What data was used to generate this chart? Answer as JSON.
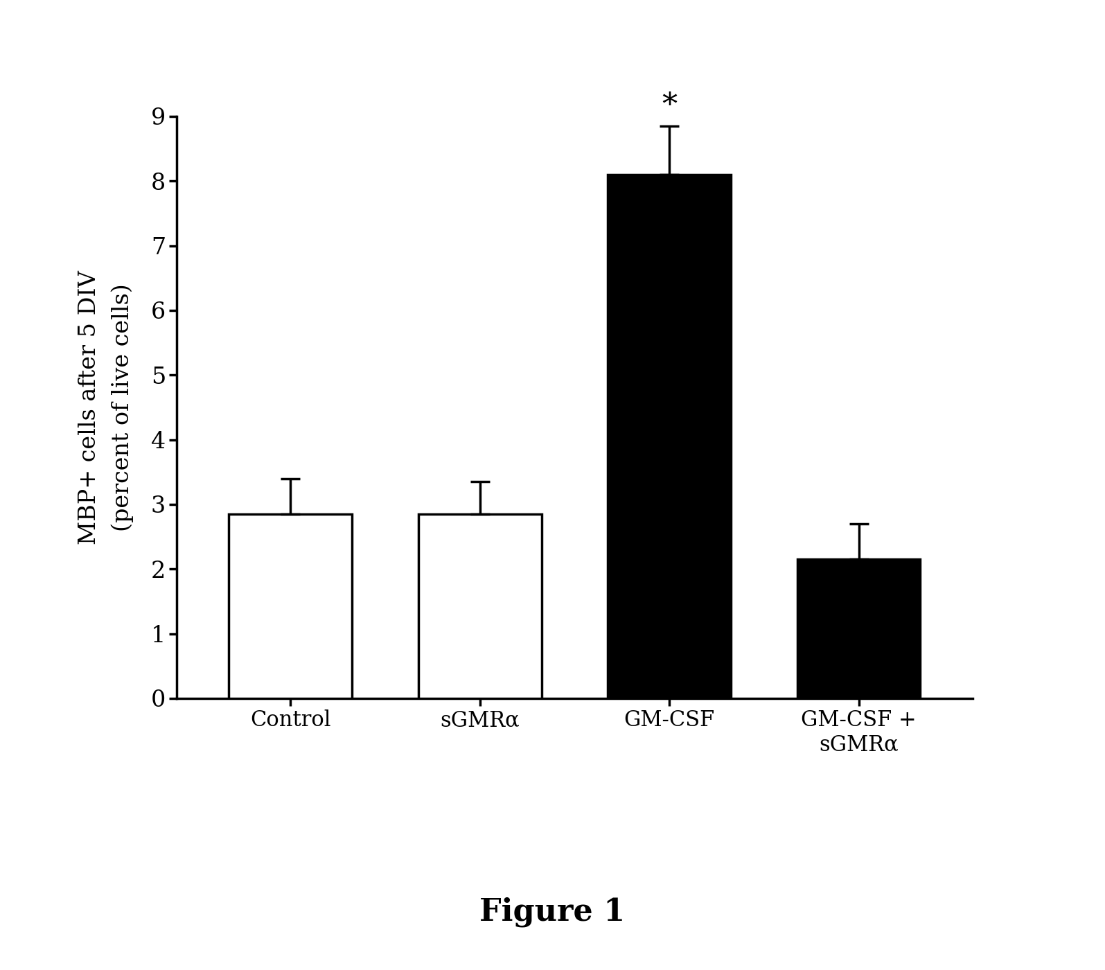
{
  "categories": [
    "Control",
    "sGMRα",
    "GM-CSF",
    "GM-CSF +\nsGMRα"
  ],
  "values": [
    2.85,
    2.85,
    8.1,
    2.15
  ],
  "errors": [
    0.55,
    0.5,
    0.75,
    0.55
  ],
  "bar_colors": [
    "#ffffff",
    "#ffffff",
    "#000000",
    "#000000"
  ],
  "bar_edgecolors": [
    "#000000",
    "#000000",
    "#000000",
    "#000000"
  ],
  "ylabel": "MBP+ cells after 5 DIV\n(percent of live cells)",
  "ylim": [
    0,
    9
  ],
  "yticks": [
    0,
    1,
    2,
    3,
    4,
    5,
    6,
    7,
    8,
    9
  ],
  "significance_bar": 2,
  "significance_symbol": "*",
  "figure_label": "Figure 1",
  "background_color": "#ffffff",
  "bar_width": 0.65,
  "axis_fontsize": 24,
  "tick_fontsize": 24,
  "xlabel_fontsize": 22,
  "figure_label_fontsize": 32,
  "significance_fontsize": 32,
  "capsize": 10
}
